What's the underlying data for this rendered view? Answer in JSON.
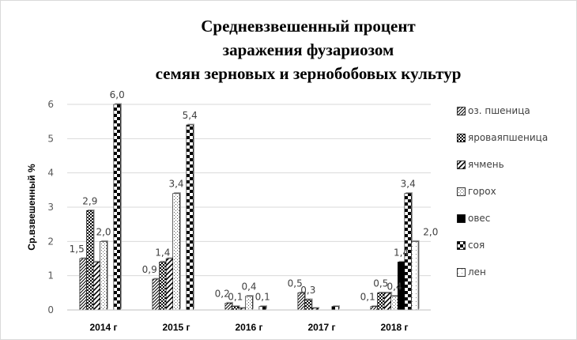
{
  "chart_data": {
    "type": "bar",
    "title_lines": [
      "Средневзвешенный процент",
      "заражения фузариозом",
      "семян зерновых и зернобобовых культур"
    ],
    "ylabel": "Ср.взвешенный %",
    "xlabel": "",
    "categories": [
      "2014 г",
      "2015 г",
      "2016 г",
      "2017 г",
      "2018 г"
    ],
    "ylim": [
      0,
      6
    ],
    "yticks": [
      "0",
      "1",
      "2",
      "3",
      "4",
      "5",
      "6"
    ],
    "grid": true,
    "legend_position": "right",
    "series": [
      {
        "name": "оз. пшеница",
        "pattern": "diag-fine",
        "values": [
          1.5,
          0.9,
          0.2,
          0.5,
          0.1
        ],
        "labels": [
          "1,5",
          "0,9",
          "0,2",
          "0,5",
          "0,1"
        ]
      },
      {
        "name": "яроваяпшеница",
        "pattern": "check-dense",
        "values": [
          2.9,
          1.4,
          0.1,
          0.3,
          0.5
        ],
        "labels": [
          "2,9",
          "1,4",
          "0,1",
          "0,3",
          "0,5"
        ]
      },
      {
        "name": "ячмень",
        "pattern": "diag-wide",
        "values": [
          1.4,
          1.5,
          0.05,
          0.05,
          0.5
        ],
        "labels": [
          "",
          "",
          "",
          "",
          ""
        ]
      },
      {
        "name": "горох",
        "pattern": "dots",
        "values": [
          2.0,
          3.4,
          0.4,
          0.0,
          0.4
        ],
        "labels": [
          "2,0",
          "3,4",
          "0,4",
          "",
          "0,4"
        ]
      },
      {
        "name": "овес",
        "pattern": "solid",
        "values": [
          0,
          0,
          0,
          0,
          1.4
        ],
        "labels": [
          "",
          "",
          "",
          "",
          "1,4"
        ]
      },
      {
        "name": "соя",
        "pattern": "check-large",
        "values": [
          6.0,
          5.4,
          0.1,
          0.1,
          3.4
        ],
        "labels": [
          "6,0",
          "5,4",
          "0,1",
          "",
          "3,4"
        ]
      },
      {
        "name": "лен",
        "pattern": "dots-light",
        "values": [
          0,
          0,
          0,
          0,
          2.0
        ],
        "labels": [
          "",
          "",
          "",
          "",
          "2,0"
        ]
      }
    ]
  }
}
